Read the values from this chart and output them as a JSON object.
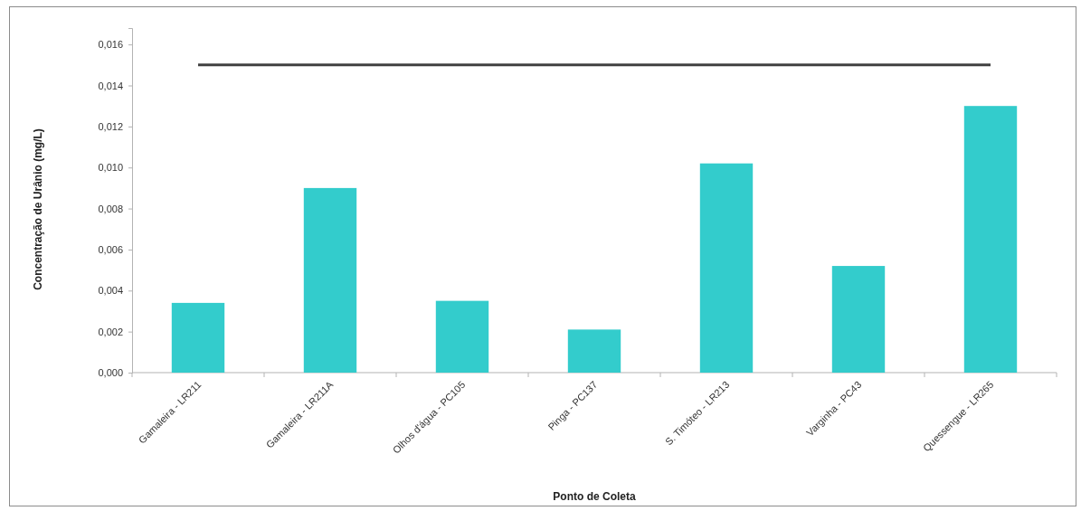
{
  "chart_data": {
    "type": "bar",
    "xlabel": "Ponto de Coleta",
    "ylabel": "Concentração de Urânio (mg/L)",
    "categories": [
      "Gamaleira - LR211",
      "Gamaleira - LR211A",
      "Olhos d'água - PC105",
      "Pinga - PC137",
      "S. Timóteo - LR213",
      "Varginha - PC43",
      "Quessengue - LR265"
    ],
    "series": [
      {
        "color": "#33cccc",
        "values": [
          0.0034,
          0.009,
          0.0035,
          0.0021,
          0.0102,
          0.0052,
          0.013
        ]
      },
      {
        "type": "line",
        "color": "#404040",
        "values": [
          0.015,
          0.015,
          0.015,
          0.015,
          0.015,
          0.015,
          0.015
        ]
      }
    ],
    "ylim": [
      0,
      0.0168
    ],
    "yticks": [
      {
        "value": 0,
        "label": "0,000"
      },
      {
        "value": 0.002,
        "label": "0,002"
      },
      {
        "value": 0.004,
        "label": "0,004"
      },
      {
        "value": 0.006,
        "label": "0,006"
      },
      {
        "value": 0.008,
        "label": "0,008"
      },
      {
        "value": 0.01,
        "label": "0,010"
      },
      {
        "value": 0.012,
        "label": "0,012"
      },
      {
        "value": 0.014,
        "label": "0,014"
      },
      {
        "value": 0.016,
        "label": "0,016"
      }
    ],
    "grid": false,
    "marker": "none",
    "line_style": "solid"
  }
}
